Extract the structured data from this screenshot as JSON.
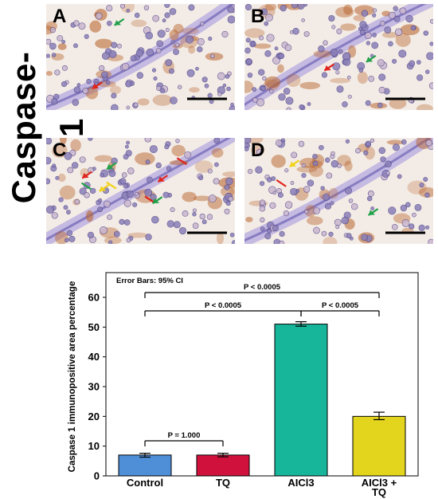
{
  "figure_title": "Caspase-1",
  "panels": [
    {
      "id": "A",
      "label": "A",
      "arrows": {
        "red": 1,
        "green": 1,
        "yellow": 0
      }
    },
    {
      "id": "B",
      "label": "B",
      "arrows": {
        "red": 1,
        "green": 1,
        "yellow": 0
      }
    },
    {
      "id": "C",
      "label": "C",
      "arrows": {
        "red": 4,
        "green": 3,
        "yellow": 2
      }
    },
    {
      "id": "D",
      "label": "D",
      "arrows": {
        "red": 1,
        "green": 1,
        "yellow": 1
      }
    }
  ],
  "colors": {
    "tissue_background": "#f3ece6",
    "stain_brown": "#b8652e",
    "nuclei_blue": "#6a5a9e",
    "arrow_red": "#e0241d",
    "arrow_green": "#22a14a",
    "arrow_yellow": "#f2d21b",
    "scale_bar": "#000000"
  },
  "chart_data": {
    "type": "bar",
    "categories": [
      "Control",
      "TQ",
      "AICl3",
      "AICl3 +\nTQ"
    ],
    "category_lines": [
      [
        "Control"
      ],
      [
        "TQ"
      ],
      [
        "AICl3"
      ],
      [
        "AICl3 +",
        "TQ"
      ]
    ],
    "values": [
      7,
      7,
      51,
      20
    ],
    "error_low": [
      6.3,
      6.4,
      50.3,
      18.9
    ],
    "error_high": [
      7.6,
      7.6,
      51.8,
      21.4
    ],
    "colors": [
      "#4f8fd8",
      "#d0113b",
      "#17b59a",
      "#e3d41d"
    ],
    "ylabel": "Caspase 1 immunopositive area percentage",
    "xlabel": "",
    "ylim": [
      0,
      65
    ],
    "yticks": [
      0,
      10,
      20,
      30,
      40,
      50,
      60
    ],
    "annotation": "Error Bars: 95% CI",
    "comparisons": [
      {
        "from": 0,
        "to": 1,
        "label": "P = 1.000"
      },
      {
        "from": 0,
        "to": 2,
        "label": "P < 0.0005"
      },
      {
        "from": 2,
        "to": 3,
        "label": "P < 0.0005"
      },
      {
        "from": 0,
        "to": 3,
        "label": "P < 0.0005"
      }
    ],
    "grid": false
  }
}
